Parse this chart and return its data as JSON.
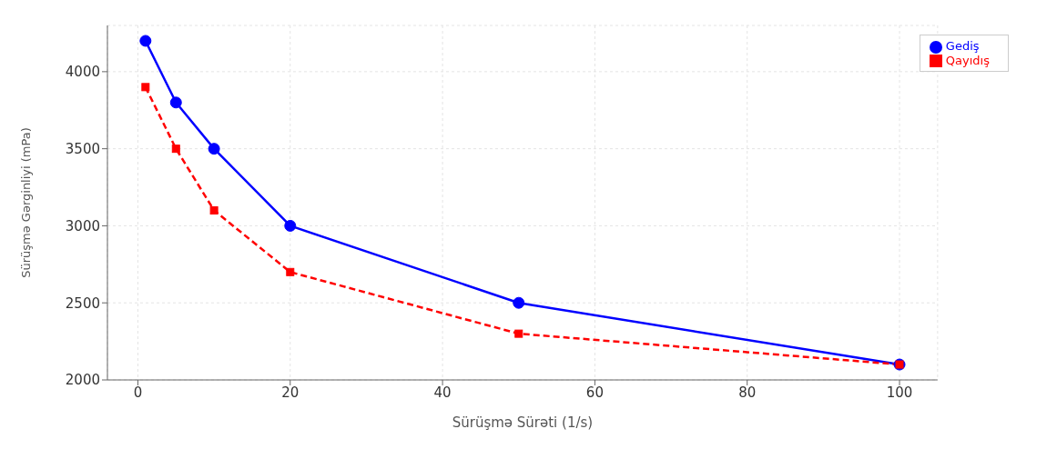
{
  "chart_data": {
    "type": "line",
    "xlabel": "Sürüşmə Sürəti (1/s)",
    "ylabel": "Sürüşmə Gərginliyi (mPa)",
    "x": [
      1,
      5,
      10,
      20,
      50,
      100
    ],
    "series": [
      {
        "name": "Gediş",
        "color": "#0000ff",
        "values": [
          4200,
          3800,
          3500,
          3000,
          2500,
          2100
        ],
        "marker": "circle",
        "line_style": "solid"
      },
      {
        "name": "Qayıdış",
        "color": "#ff0000",
        "values": [
          3900,
          3500,
          3100,
          2700,
          2300,
          2100
        ],
        "marker": "square",
        "line_style": "dashed"
      }
    ],
    "xlim": [
      -4,
      105
    ],
    "xticks": [
      0,
      20,
      40,
      60,
      80,
      100
    ],
    "ylim": [
      2000,
      4300
    ],
    "yticks": [
      2000,
      2500,
      3000,
      3500,
      4000
    ],
    "grid": true,
    "legend": "top right"
  }
}
